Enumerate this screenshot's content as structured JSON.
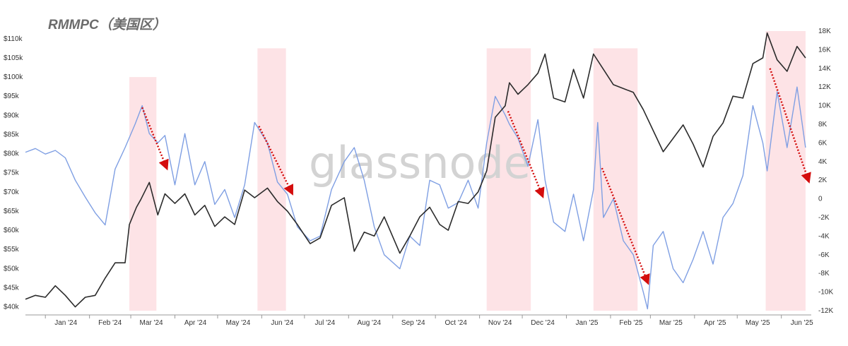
{
  "chart_data": {
    "type": "line",
    "title": "RMMPC（美国区）",
    "watermark": "glassnode",
    "x_tick_labels": [
      "Jan '24",
      "Feb '24",
      "Mar '24",
      "Apr '24",
      "May '24",
      "Jun '24",
      "Jul '24",
      "Aug '24",
      "Sep '24",
      "Oct '24",
      "Nov '24",
      "Dec '24",
      "Jan '25",
      "Feb '25",
      "Mar '25",
      "Apr '25",
      "May '25",
      "Jun '25"
    ],
    "xlim": [
      "2023-12-18",
      "2025-06-22"
    ],
    "y_left": {
      "min": 39000,
      "max": 112000,
      "ticks": [
        40000,
        45000,
        50000,
        55000,
        60000,
        65000,
        70000,
        75000,
        80000,
        85000,
        90000,
        95000,
        100000,
        105000,
        110000
      ],
      "tick_labels": [
        "$40k",
        "$45k",
        "$50k",
        "$55k",
        "$60k",
        "$65k",
        "$70k",
        "$75k",
        "$80k",
        "$85k",
        "$90k",
        "$95k",
        "$100k",
        "$105k",
        "$110k"
      ]
    },
    "y_right": {
      "min": -12000,
      "max": 18000,
      "ticks": [
        -12000,
        -10000,
        -8000,
        -6000,
        -4000,
        -2000,
        0,
        2000,
        4000,
        6000,
        8000,
        10000,
        12000,
        14000,
        16000,
        18000
      ],
      "tick_labels": [
        "-12K",
        "-10K",
        "-8K",
        "-6K",
        "-4K",
        "-2K",
        "0",
        "2K",
        "4K",
        "6K",
        "8K",
        "10K",
        "12K",
        "14K",
        "16K",
        "18K"
      ]
    },
    "grid": false,
    "colors": {
      "price": "#2b2b2b",
      "rmmpc": "#7f9fe3",
      "highlight": "#fde3e6",
      "arrow": "#d40d0d"
    },
    "highlight_ranges": [
      {
        "start": "2024-02-29",
        "end": "2024-03-19",
        "top": 100000
      },
      {
        "start": "2024-05-29",
        "end": "2024-06-18",
        "top": 107500
      },
      {
        "start": "2024-11-06",
        "end": "2024-12-07",
        "top": 107500
      },
      {
        "start": "2025-01-20",
        "end": "2025-02-20",
        "top": 107500
      },
      {
        "start": "2025-05-21",
        "end": "2025-06-18",
        "top": 112000
      }
    ],
    "trend_arrows": [
      {
        "from": {
          "x": "2024-03-09",
          "y": 9800
        },
        "to": {
          "x": "2024-03-26",
          "y": 3400
        }
      },
      {
        "from": {
          "x": "2024-05-30",
          "y": 7800
        },
        "to": {
          "x": "2024-06-22",
          "y": 700
        }
      },
      {
        "from": {
          "x": "2024-11-21",
          "y": 9400
        },
        "to": {
          "x": "2024-12-15",
          "y": 400
        }
      },
      {
        "from": {
          "x": "2025-01-26",
          "y": 3300
        },
        "to": {
          "x": "2025-02-27",
          "y": -8900
        }
      },
      {
        "from": {
          "x": "2025-05-24",
          "y": 14000
        },
        "to": {
          "x": "2025-06-20",
          "y": 2000
        }
      }
    ],
    "series": [
      {
        "axis": "left",
        "points": [
          [
            "2023-12-18",
            42000
          ],
          [
            "2023-12-25",
            43000
          ],
          [
            "2024-01-01",
            42500
          ],
          [
            "2024-01-08",
            45500
          ],
          [
            "2024-01-15",
            43000
          ],
          [
            "2024-01-22",
            40000
          ],
          [
            "2024-01-29",
            42500
          ],
          [
            "2024-02-05",
            43000
          ],
          [
            "2024-02-12",
            47500
          ],
          [
            "2024-02-19",
            51500
          ],
          [
            "2024-02-26",
            51500
          ],
          [
            "2024-02-29",
            61500
          ],
          [
            "2024-03-05",
            66000
          ],
          [
            "2024-03-08",
            68000
          ],
          [
            "2024-03-14",
            72500
          ],
          [
            "2024-03-20",
            64000
          ],
          [
            "2024-03-25",
            69500
          ],
          [
            "2024-04-01",
            67000
          ],
          [
            "2024-04-08",
            69500
          ],
          [
            "2024-04-15",
            64000
          ],
          [
            "2024-04-22",
            66500
          ],
          [
            "2024-04-29",
            61000
          ],
          [
            "2024-05-06",
            63500
          ],
          [
            "2024-05-13",
            61500
          ],
          [
            "2024-05-20",
            70500
          ],
          [
            "2024-05-27",
            68500
          ],
          [
            "2024-06-05",
            71000
          ],
          [
            "2024-06-12",
            67500
          ],
          [
            "2024-06-19",
            65000
          ],
          [
            "2024-06-26",
            61500
          ],
          [
            "2024-07-05",
            56500
          ],
          [
            "2024-07-12",
            58000
          ],
          [
            "2024-07-20",
            66500
          ],
          [
            "2024-07-29",
            68500
          ],
          [
            "2024-08-05",
            54500
          ],
          [
            "2024-08-12",
            59500
          ],
          [
            "2024-08-19",
            58500
          ],
          [
            "2024-08-26",
            63500
          ],
          [
            "2024-09-06",
            54000
          ],
          [
            "2024-09-13",
            58500
          ],
          [
            "2024-09-20",
            63500
          ],
          [
            "2024-09-27",
            66000
          ],
          [
            "2024-10-04",
            61500
          ],
          [
            "2024-10-10",
            60000
          ],
          [
            "2024-10-17",
            67500
          ],
          [
            "2024-10-24",
            67000
          ],
          [
            "2024-10-31",
            70000
          ],
          [
            "2024-11-06",
            75500
          ],
          [
            "2024-11-12",
            89500
          ],
          [
            "2024-11-19",
            92500
          ],
          [
            "2024-11-22",
            98500
          ],
          [
            "2024-11-28",
            95500
          ],
          [
            "2024-12-05",
            98000
          ],
          [
            "2024-12-12",
            101000
          ],
          [
            "2024-12-17",
            106000
          ],
          [
            "2024-12-23",
            94500
          ],
          [
            "2024-12-31",
            93500
          ],
          [
            "2025-01-06",
            102000
          ],
          [
            "2025-01-13",
            94500
          ],
          [
            "2025-01-20",
            106000
          ],
          [
            "2025-01-27",
            102000
          ],
          [
            "2025-02-03",
            98000
          ],
          [
            "2025-02-10",
            97000
          ],
          [
            "2025-02-17",
            96000
          ],
          [
            "2025-02-24",
            91500
          ],
          [
            "2025-03-03",
            86000
          ],
          [
            "2025-03-10",
            80500
          ],
          [
            "2025-03-17",
            84000
          ],
          [
            "2025-03-24",
            87500
          ],
          [
            "2025-03-31",
            82500
          ],
          [
            "2025-04-07",
            76500
          ],
          [
            "2025-04-14",
            84500
          ],
          [
            "2025-04-21",
            88000
          ],
          [
            "2025-04-28",
            95000
          ],
          [
            "2025-05-05",
            94500
          ],
          [
            "2025-05-12",
            103500
          ],
          [
            "2025-05-19",
            105000
          ],
          [
            "2025-05-22",
            111500
          ],
          [
            "2025-05-29",
            104500
          ],
          [
            "2025-06-05",
            101500
          ],
          [
            "2025-06-12",
            108000
          ],
          [
            "2025-06-18",
            105000
          ]
        ]
      },
      {
        "axis": "right",
        "points": [
          [
            "2023-12-18",
            5000
          ],
          [
            "2023-12-25",
            5400
          ],
          [
            "2024-01-01",
            4800
          ],
          [
            "2024-01-08",
            5200
          ],
          [
            "2024-01-15",
            4400
          ],
          [
            "2024-01-22",
            2000
          ],
          [
            "2024-01-29",
            200
          ],
          [
            "2024-02-05",
            -1500
          ],
          [
            "2024-02-12",
            -2800
          ],
          [
            "2024-02-19",
            3200
          ],
          [
            "2024-02-26",
            5500
          ],
          [
            "2024-03-04",
            8000
          ],
          [
            "2024-03-09",
            10000
          ],
          [
            "2024-03-14",
            7000
          ],
          [
            "2024-03-20",
            6000
          ],
          [
            "2024-03-25",
            6800
          ],
          [
            "2024-04-01",
            1500
          ],
          [
            "2024-04-08",
            7000
          ],
          [
            "2024-04-15",
            1500
          ],
          [
            "2024-04-22",
            4000
          ],
          [
            "2024-04-29",
            -600
          ],
          [
            "2024-05-06",
            1000
          ],
          [
            "2024-05-13",
            -2000
          ],
          [
            "2024-05-20",
            1500
          ],
          [
            "2024-05-27",
            8200
          ],
          [
            "2024-06-05",
            6000
          ],
          [
            "2024-06-12",
            1800
          ],
          [
            "2024-06-19",
            500
          ],
          [
            "2024-06-26",
            -3000
          ],
          [
            "2024-07-05",
            -4500
          ],
          [
            "2024-07-12",
            -4000
          ],
          [
            "2024-07-20",
            1000
          ],
          [
            "2024-07-29",
            4000
          ],
          [
            "2024-08-05",
            5500
          ],
          [
            "2024-08-12",
            2000
          ],
          [
            "2024-08-19",
            -3000
          ],
          [
            "2024-08-26",
            -6000
          ],
          [
            "2024-09-06",
            -7500
          ],
          [
            "2024-09-13",
            -4000
          ],
          [
            "2024-09-20",
            -5000
          ],
          [
            "2024-09-27",
            2000
          ],
          [
            "2024-10-04",
            1500
          ],
          [
            "2024-10-10",
            -1000
          ],
          [
            "2024-10-17",
            -400
          ],
          [
            "2024-10-24",
            2000
          ],
          [
            "2024-10-31",
            -1000
          ],
          [
            "2024-11-06",
            6000
          ],
          [
            "2024-11-12",
            11000
          ],
          [
            "2024-11-19",
            9000
          ],
          [
            "2024-11-22",
            8000
          ],
          [
            "2024-11-28",
            6500
          ],
          [
            "2024-12-05",
            3500
          ],
          [
            "2024-12-12",
            8500
          ],
          [
            "2024-12-17",
            2000
          ],
          [
            "2024-12-23",
            -2500
          ],
          [
            "2024-12-31",
            -3500
          ],
          [
            "2025-01-06",
            500
          ],
          [
            "2025-01-13",
            -4500
          ],
          [
            "2025-01-20",
            1000
          ],
          [
            "2025-01-23",
            8200
          ],
          [
            "2025-01-27",
            -2000
          ],
          [
            "2025-02-03",
            0
          ],
          [
            "2025-02-10",
            -4500
          ],
          [
            "2025-02-17",
            -6000
          ],
          [
            "2025-02-24",
            -10000
          ],
          [
            "2025-02-27",
            -11800
          ],
          [
            "2025-03-03",
            -5000
          ],
          [
            "2025-03-10",
            -3500
          ],
          [
            "2025-03-17",
            -7500
          ],
          [
            "2025-03-24",
            -9000
          ],
          [
            "2025-03-31",
            -6500
          ],
          [
            "2025-04-07",
            -3500
          ],
          [
            "2025-04-14",
            -7000
          ],
          [
            "2025-04-21",
            -2000
          ],
          [
            "2025-04-28",
            -500
          ],
          [
            "2025-05-05",
            2500
          ],
          [
            "2025-05-12",
            10000
          ],
          [
            "2025-05-19",
            6000
          ],
          [
            "2025-05-22",
            3000
          ],
          [
            "2025-05-29",
            11500
          ],
          [
            "2025-06-05",
            5500
          ],
          [
            "2025-06-12",
            12000
          ],
          [
            "2025-06-18",
            5500
          ]
        ]
      }
    ]
  }
}
